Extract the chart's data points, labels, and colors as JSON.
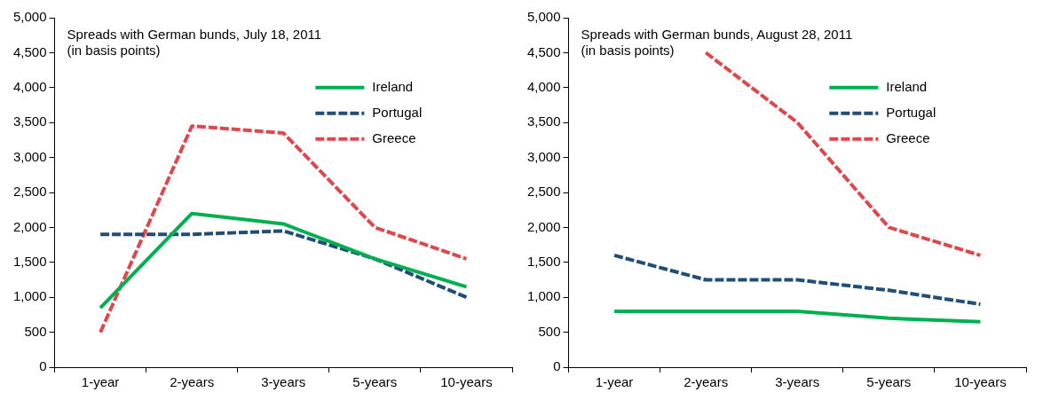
{
  "chart_data": [
    {
      "type": "line",
      "title": "Spreads with German bunds, July 18, 2011",
      "subtitle": "(in basis points)",
      "categories": [
        "1-year",
        "2-years",
        "3-years",
        "5-years",
        "10-years"
      ],
      "series": [
        {
          "name": "Ireland",
          "color": "#00b050",
          "line_style": "solid",
          "values": [
            850,
            2200,
            2050,
            1550,
            1150
          ]
        },
        {
          "name": "Portugal",
          "color": "#1f4e79",
          "line_style": "dashed",
          "values": [
            1900,
            1900,
            1950,
            1550,
            1000
          ]
        },
        {
          "name": "Greece",
          "color": "#e0474c",
          "line_style": "dashed",
          "values": [
            500,
            3450,
            3350,
            2000,
            1550
          ]
        }
      ],
      "ylim": [
        0,
        5000
      ],
      "yticks": [
        {
          "value": 0,
          "label": "0"
        },
        {
          "value": 500,
          "label": "500"
        },
        {
          "value": 1000,
          "label": "1,000"
        },
        {
          "value": 1500,
          "label": "1,500"
        },
        {
          "value": 2000,
          "label": "2,000"
        },
        {
          "value": 2500,
          "label": "2,500"
        },
        {
          "value": 3000,
          "label": "3,000"
        },
        {
          "value": 3500,
          "label": "3,500"
        },
        {
          "value": 4000,
          "label": "4,000"
        },
        {
          "value": 4500,
          "label": "4,500"
        },
        {
          "value": 5000,
          "label": "5,000"
        }
      ],
      "legend": "top right",
      "grid": false
    },
    {
      "type": "line",
      "title": "Spreads with German bunds, August 28, 2011",
      "subtitle": "(in basis points)",
      "categories": [
        "1-year",
        "2-years",
        "3-years",
        "5-years",
        "10-years"
      ],
      "series": [
        {
          "name": "Ireland",
          "color": "#00b050",
          "line_style": "solid",
          "values": [
            800,
            800,
            800,
            700,
            650
          ]
        },
        {
          "name": "Portugal",
          "color": "#1f4e79",
          "line_style": "dashed",
          "values": [
            1600,
            1250,
            1250,
            1100,
            900
          ]
        },
        {
          "name": "Greece",
          "color": "#e0474c",
          "line_style": "dashed",
          "values": [
            null,
            4500,
            3500,
            2000,
            1600
          ]
        }
      ],
      "ylim": [
        0,
        5000
      ],
      "yticks": [
        {
          "value": 0,
          "label": "0"
        },
        {
          "value": 500,
          "label": "500"
        },
        {
          "value": 1000,
          "label": "1,000"
        },
        {
          "value": 1500,
          "label": "1,500"
        },
        {
          "value": 2000,
          "label": "2,000"
        },
        {
          "value": 2500,
          "label": "2,500"
        },
        {
          "value": 3000,
          "label": "3,000"
        },
        {
          "value": 3500,
          "label": "3,500"
        },
        {
          "value": 4000,
          "label": "4,000"
        },
        {
          "value": 4500,
          "label": "4,500"
        },
        {
          "value": 5000,
          "label": "5,000"
        }
      ],
      "legend": "top right",
      "grid": false
    }
  ]
}
